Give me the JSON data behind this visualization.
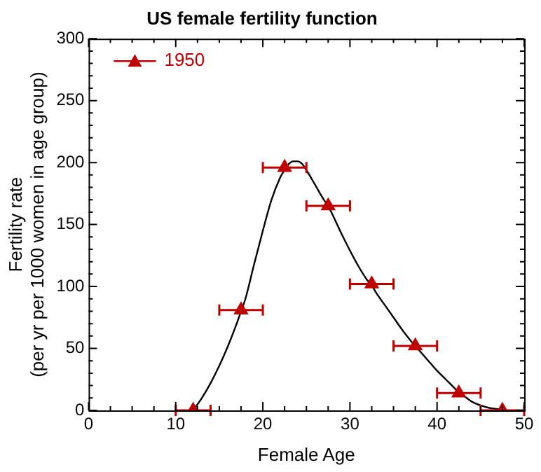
{
  "chart_data": {
    "type": "scatter",
    "title": "US female fertility function",
    "xlabel": "Female Age",
    "ylabel": "Fertility rate\n(per yr per 1000 women in age group)",
    "xlim": [
      0,
      50
    ],
    "xticks": [
      0,
      10,
      20,
      30,
      40,
      50
    ],
    "ylim": [
      0,
      300
    ],
    "yticks": [
      0,
      50,
      100,
      150,
      200,
      250,
      300
    ],
    "grid": false,
    "legend": "top left",
    "series": [
      {
        "type": "line",
        "color": "#000000",
        "marker": "none",
        "x": [
          12,
          13,
          14,
          15,
          16,
          17,
          17.5,
          18,
          19,
          20,
          21,
          22,
          22.5,
          23,
          23.5,
          24,
          24.5,
          25,
          26,
          27,
          27.5,
          28,
          29,
          30,
          31,
          32,
          32.5,
          33,
          34,
          35,
          36,
          37,
          37.5,
          38,
          39,
          40,
          41,
          42,
          42.5,
          43,
          44,
          45,
          46,
          47,
          47.5
        ],
        "values": [
          0,
          10,
          22,
          36,
          52,
          70,
          80,
          90,
          118,
          145,
          170,
          188,
          194,
          199,
          201,
          201,
          199,
          194,
          182,
          170,
          165,
          158,
          143,
          129,
          116,
          105,
          101,
          95,
          85,
          75,
          65,
          56,
          52,
          48,
          40,
          32,
          25,
          18,
          14,
          12,
          7,
          4,
          2,
          1,
          0
        ]
      },
      {
        "type": "scatter",
        "name": "1950",
        "color": "#c00000",
        "marker": "triangle",
        "x": [
          12,
          17.5,
          22.5,
          27.5,
          32.5,
          37.5,
          42.5,
          47.5
        ],
        "values": [
          0,
          81,
          196,
          165,
          102,
          52,
          14,
          0
        ],
        "xerrors": [
          [
            10,
            14
          ],
          2.5,
          2.5,
          2.5,
          2.5,
          2.5,
          2.5,
          2.5
        ]
      }
    ]
  }
}
